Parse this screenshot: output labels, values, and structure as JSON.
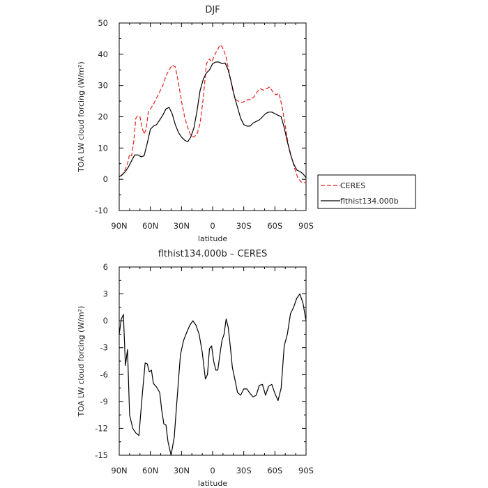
{
  "chart_data": [
    {
      "type": "line",
      "title": "DJF",
      "xlabel": "latitude",
      "ylabel": "TOA LW cloud forcing (W/m²)",
      "xlim": [
        90,
        -90
      ],
      "ylim": [
        -10,
        50
      ],
      "xticks": [
        90,
        60,
        30,
        0,
        -30,
        -60,
        -90
      ],
      "xtick_labels": [
        "90N",
        "60N",
        "30N",
        "0",
        "30S",
        "60S",
        "90S"
      ],
      "yticks": [
        -10,
        0,
        10,
        20,
        30,
        40,
        50
      ],
      "ytick_labels": [
        "-10",
        "0",
        "10",
        "20",
        "30",
        "40",
        "50"
      ],
      "legend_placement": "right",
      "series": [
        {
          "name": "CERES",
          "color": "#e8201a",
          "dash": "dashed",
          "x": [
            88,
            85,
            82,
            80,
            78,
            76,
            74,
            72,
            70,
            68,
            66,
            64,
            62,
            60,
            57,
            54,
            51,
            48,
            45,
            42,
            39,
            36,
            33,
            30,
            27,
            24,
            21,
            18,
            15,
            12,
            9,
            6,
            3,
            1,
            -1,
            -3,
            -5,
            -7,
            -9,
            -11,
            -13,
            -16,
            -19,
            -22,
            -25,
            -28,
            -31,
            -34,
            -37,
            -40,
            -43,
            -46,
            -49,
            -52,
            -55,
            -58,
            -61,
            -64,
            -67,
            -70,
            -73,
            -76,
            -79,
            -82,
            -85,
            -88,
            -90
          ],
          "y": [
            1,
            2.5,
            5,
            8,
            7.5,
            12,
            19.5,
            20.3,
            20,
            16.5,
            14.5,
            16,
            21.5,
            22.5,
            24,
            26,
            28,
            30,
            33,
            35,
            36.5,
            36,
            31,
            25,
            20,
            16.5,
            14,
            13.5,
            14.5,
            18,
            26,
            37,
            38.5,
            37.5,
            39,
            40.5,
            41.5,
            43,
            42.5,
            41,
            39,
            34,
            29,
            25.5,
            25,
            24.5,
            25,
            25.5,
            25.5,
            26.5,
            28,
            29,
            28.5,
            29,
            29.5,
            28,
            27,
            27.5,
            23,
            17,
            11,
            7,
            3.5,
            0.5,
            -0.8,
            -1.2,
            -0.8
          ]
        },
        {
          "name": "flthist134.000b",
          "color": "#000000",
          "dash": "solid",
          "x": [
            90,
            87,
            84,
            81,
            78,
            75,
            72,
            69,
            66,
            63,
            60,
            57,
            54,
            51,
            48,
            45,
            42,
            39,
            36,
            33,
            30,
            27,
            24,
            21,
            18,
            15,
            12,
            9,
            6,
            3,
            0,
            -3,
            -6,
            -9,
            -12,
            -15,
            -18,
            -21,
            -24,
            -27,
            -30,
            -33,
            -36,
            -39,
            -42,
            -45,
            -48,
            -51,
            -54,
            -57,
            -60,
            -63,
            -66,
            -69,
            -72,
            -75,
            -78,
            -81,
            -84,
            -87,
            -90
          ],
          "y": [
            0.8,
            1.5,
            2.5,
            4,
            6,
            7.8,
            7.8,
            7.2,
            7.5,
            11.5,
            16,
            17,
            17.5,
            19,
            20.5,
            22.5,
            23,
            21,
            17.5,
            15,
            13.5,
            12.5,
            12,
            13.5,
            16.5,
            22,
            28.5,
            32,
            34,
            35,
            37,
            37.5,
            37.5,
            37,
            37.2,
            35,
            31,
            26.5,
            23,
            19.5,
            17.5,
            17,
            17,
            18,
            18.5,
            19,
            20,
            21,
            21.5,
            21.5,
            21,
            20.5,
            20,
            16.5,
            12,
            8,
            5,
            3,
            2.5,
            1.8,
            0.5
          ]
        }
      ]
    },
    {
      "type": "line",
      "title": "flthist134.000b – CERES",
      "xlabel": "latitude",
      "ylabel": "TOA LW cloud forcing (W/m²)",
      "xlim": [
        90,
        -90
      ],
      "ylim": [
        -15,
        6
      ],
      "xticks": [
        90,
        60,
        30,
        0,
        -30,
        -60,
        -90
      ],
      "xtick_labels": [
        "90N",
        "60N",
        "30N",
        "0",
        "30S",
        "60S",
        "90S"
      ],
      "yticks": [
        -15,
        -12,
        -9,
        -6,
        -3,
        0,
        3,
        6
      ],
      "ytick_labels": [
        "-15",
        "-12",
        "-9",
        "-6",
        "-3",
        "0",
        "3",
        "6"
      ],
      "series": [
        {
          "name": "",
          "color": "#000000",
          "dash": "solid",
          "x": [
            90,
            88,
            86,
            84,
            82,
            80,
            77,
            74,
            71,
            68,
            65,
            63,
            61,
            59,
            57,
            54,
            51,
            49,
            47,
            45,
            43,
            40,
            37,
            34,
            31,
            28,
            25,
            22,
            19,
            16,
            13,
            10,
            7,
            5,
            3,
            1,
            -1,
            -3,
            -5,
            -7,
            -9,
            -11,
            -13,
            -15,
            -17,
            -19,
            -21,
            -24,
            -27,
            -30,
            -33,
            -36,
            -39,
            -42,
            -45,
            -48,
            -51,
            -54,
            -57,
            -60,
            -63,
            -66,
            -69,
            -72,
            -75,
            -78,
            -81,
            -84,
            -87,
            -90
          ],
          "y": [
            -1.5,
            0.2,
            0.7,
            -5,
            -3.2,
            -10.5,
            -12,
            -12.5,
            -12.8,
            -8.5,
            -4.7,
            -4.8,
            -5.7,
            -5.5,
            -7,
            -7.4,
            -8,
            -10,
            -11.5,
            -11.6,
            -13.5,
            -15,
            -13,
            -8.3,
            -3.8,
            -2.2,
            -1.3,
            -0.5,
            0,
            -0.5,
            -1.5,
            -3.5,
            -6.5,
            -6,
            -3.1,
            -2.8,
            -4.5,
            -5.5,
            -5.5,
            -3.8,
            -2.2,
            -1.5,
            0.2,
            -0.7,
            -2.8,
            -5.2,
            -6.3,
            -8,
            -8.3,
            -7.6,
            -7.6,
            -8.1,
            -8.5,
            -8.3,
            -7.2,
            -7.1,
            -8.3,
            -7.3,
            -7.1,
            -8.1,
            -8.9,
            -7.5,
            -2.8,
            -1.5,
            0.8,
            1.5,
            2.5,
            3,
            2,
            0
          ]
        }
      ]
    }
  ]
}
